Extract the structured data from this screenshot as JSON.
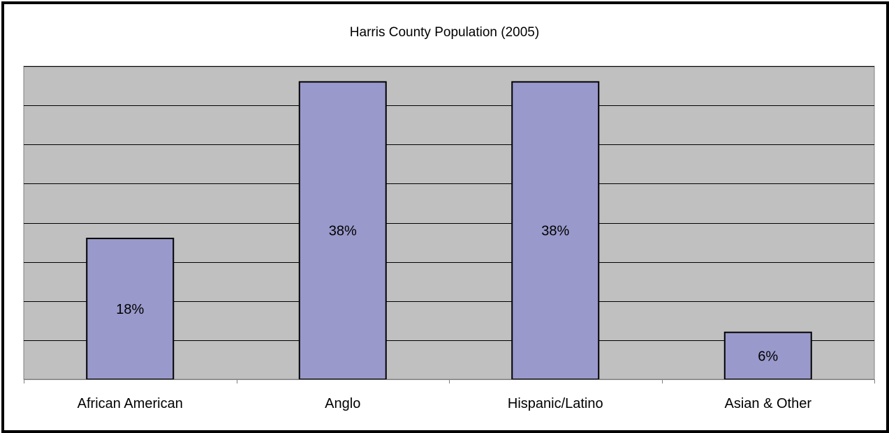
{
  "chart_data": {
    "type": "bar",
    "title": "Harris County Population (2005)",
    "categories": [
      "African American",
      "Anglo",
      "Hispanic/Latino",
      "Asian & Other"
    ],
    "values": [
      18,
      38,
      38,
      6
    ],
    "value_labels": [
      "18%",
      "38%",
      "38%",
      "6%"
    ],
    "ylim": [
      0,
      40
    ],
    "grid": true,
    "legend": "none",
    "colors": {
      "bar_fill": "#9999cc",
      "bar_stroke": "#000000",
      "plot_bg": "#c0c0c0",
      "grid": "#000000"
    }
  }
}
